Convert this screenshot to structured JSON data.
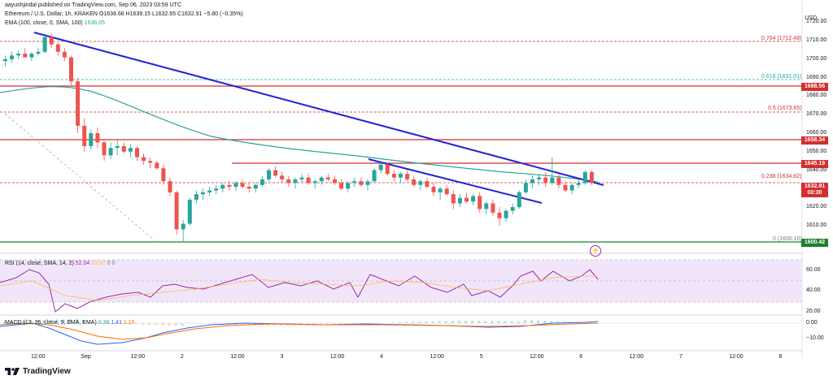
{
  "header": {
    "author_line": "aayushjindal published on TradingView.com, Sep 06, 2023 03:59 UTC",
    "symbol_line": "Ethereum / U.S. Dollar, 1h, KRAKEN",
    "ohlc": "O1638.68 H1639.15 L1632.65 C1632.91 −5.80 (−0.35%)",
    "ema_line": "EMA (100, close, 0, SMA, 100)",
    "ema_value": "1636.05"
  },
  "currency": "USD",
  "price_axis": {
    "ticks": [
      "1720.00",
      "1710.00",
      "1700.00",
      "1690.00",
      "1680.00",
      "1670.00",
      "1660.00",
      "1650.00",
      "1640.00",
      "1630.00",
      "1620.00",
      "1610.00",
      "1600.00"
    ]
  },
  "price_tags": [
    {
      "label": "1688.56",
      "color": "#d32f2f"
    },
    {
      "label": "1658.34",
      "color": "#d32f2f"
    },
    {
      "label": "1645.19",
      "color": "#d32f2f"
    },
    {
      "label": "1632.91",
      "color": "#d32f2f"
    },
    {
      "label": "00:30",
      "color": "#d32f2f"
    },
    {
      "label": "1600.42",
      "color": "#1b7f2e"
    }
  ],
  "fib_levels": [
    {
      "label": "0.764 (1712.48)",
      "color": "#d32f2f"
    },
    {
      "label": "0.618 (1691.01)",
      "color": "#26a69a"
    },
    {
      "label": "0.5 (1673.65)",
      "color": "#d32f2f"
    },
    {
      "label": "0.236 (1634.82)",
      "color": "#d32f2f"
    },
    {
      "label": "0 (1600.10)",
      "color": "#787b86"
    }
  ],
  "rsi": {
    "label": "RSI (14, close, SMA, 14, 2)",
    "value1": "52.04",
    "value2": "53.97",
    "value3": "0",
    "value4": "0",
    "ticks": [
      "60.00",
      "40.00",
      "20.00"
    ]
  },
  "macd": {
    "label": "MACD (12, 26, close, 9, EMA, EMA)",
    "value1": "0.38",
    "value2": "1.41",
    "value3": "1.10",
    "ticks": [
      "0.00",
      "−10.00"
    ]
  },
  "time_axis": [
    "12:00",
    "Sep",
    "12:00",
    "2",
    "12:00",
    "3",
    "12:00",
    "4",
    "12:00",
    "5",
    "12:00",
    "6",
    "12:00",
    "7",
    "12:00",
    "8"
  ],
  "branding": "TradingView",
  "colors": {
    "up": "#26a69a",
    "down": "#ef5350",
    "trendline": "#2323d6",
    "ema": "#26a69a",
    "rsi_line": "#9c27b0",
    "rsi_band": "#e9d9f5",
    "macd_line": "#2962ff",
    "signal_line": "#ff6d00",
    "resistance": "#d32f2f",
    "support": "#1b7f2e"
  },
  "chart_data": {
    "type": "candlestick",
    "symbol": "Ethereum / U.S. Dollar",
    "ylim": [
      1595,
      1725
    ],
    "candles": [
      [
        1699,
        1702,
        1696,
        1700
      ],
      [
        1700,
        1704,
        1698,
        1702
      ],
      [
        1702,
        1705,
        1700,
        1703
      ],
      [
        1703,
        1706,
        1701,
        1701
      ],
      [
        1701,
        1704,
        1699,
        1703
      ],
      [
        1703,
        1706,
        1702,
        1704
      ],
      [
        1704,
        1713,
        1703,
        1712
      ],
      [
        1712,
        1714,
        1706,
        1708
      ],
      [
        1708,
        1709,
        1702,
        1704
      ],
      [
        1704,
        1706,
        1699,
        1701
      ],
      [
        1701,
        1702,
        1686,
        1688
      ],
      [
        1688,
        1690,
        1660,
        1664
      ],
      [
        1664,
        1668,
        1650,
        1653
      ],
      [
        1653,
        1662,
        1651,
        1660
      ],
      [
        1660,
        1663,
        1652,
        1655
      ],
      [
        1655,
        1657,
        1645,
        1648
      ],
      [
        1648,
        1655,
        1646,
        1652
      ],
      [
        1652,
        1656,
        1648,
        1653
      ],
      [
        1653,
        1655,
        1649,
        1650
      ],
      [
        1650,
        1654,
        1647,
        1652
      ],
      [
        1652,
        1653,
        1645,
        1647
      ],
      [
        1647,
        1649,
        1643,
        1645
      ],
      [
        1645,
        1647,
        1641,
        1644
      ],
      [
        1644,
        1645,
        1640,
        1641
      ],
      [
        1641,
        1643,
        1632,
        1634
      ],
      [
        1634,
        1636,
        1626,
        1628
      ],
      [
        1628,
        1629,
        1605,
        1608
      ],
      [
        1608,
        1613,
        1601,
        1611
      ],
      [
        1611,
        1625,
        1610,
        1624
      ],
      [
        1624,
        1629,
        1622,
        1627
      ],
      [
        1627,
        1630,
        1624,
        1628
      ],
      [
        1628,
        1631,
        1626,
        1629
      ],
      [
        1629,
        1632,
        1627,
        1630
      ],
      [
        1630,
        1633,
        1628,
        1632
      ],
      [
        1632,
        1634,
        1629,
        1631
      ],
      [
        1631,
        1634,
        1629,
        1633
      ],
      [
        1633,
        1635,
        1630,
        1631
      ],
      [
        1631,
        1633,
        1628,
        1630
      ],
      [
        1630,
        1633,
        1628,
        1632
      ],
      [
        1632,
        1637,
        1631,
        1635
      ],
      [
        1635,
        1641,
        1634,
        1640
      ],
      [
        1640,
        1642,
        1636,
        1637
      ],
      [
        1637,
        1639,
        1633,
        1635
      ],
      [
        1635,
        1637,
        1631,
        1633
      ],
      [
        1633,
        1636,
        1630,
        1635
      ],
      [
        1635,
        1638,
        1633,
        1636
      ],
      [
        1636,
        1638,
        1632,
        1633
      ],
      [
        1633,
        1635,
        1630,
        1634
      ],
      [
        1634,
        1637,
        1632,
        1636
      ],
      [
        1636,
        1638,
        1634,
        1635
      ],
      [
        1635,
        1637,
        1632,
        1633
      ],
      [
        1633,
        1635,
        1629,
        1630
      ],
      [
        1630,
        1634,
        1628,
        1633
      ],
      [
        1633,
        1636,
        1631,
        1634
      ],
      [
        1634,
        1636,
        1631,
        1632
      ],
      [
        1632,
        1635,
        1629,
        1634
      ],
      [
        1634,
        1641,
        1633,
        1640
      ],
      [
        1640,
        1645,
        1638,
        1643
      ],
      [
        1643,
        1644,
        1637,
        1638
      ],
      [
        1638,
        1640,
        1634,
        1636
      ],
      [
        1636,
        1639,
        1633,
        1638
      ],
      [
        1638,
        1640,
        1634,
        1635
      ],
      [
        1635,
        1637,
        1631,
        1632
      ],
      [
        1632,
        1635,
        1629,
        1634
      ],
      [
        1634,
        1636,
        1630,
        1631
      ],
      [
        1631,
        1633,
        1626,
        1628
      ],
      [
        1628,
        1631,
        1624,
        1630
      ],
      [
        1630,
        1632,
        1626,
        1627
      ],
      [
        1627,
        1629,
        1619,
        1622
      ],
      [
        1622,
        1627,
        1620,
        1625
      ],
      [
        1625,
        1628,
        1622,
        1623
      ],
      [
        1623,
        1627,
        1621,
        1626
      ],
      [
        1626,
        1628,
        1617,
        1619
      ],
      [
        1619,
        1623,
        1616,
        1622
      ],
      [
        1622,
        1624,
        1615,
        1617
      ],
      [
        1617,
        1620,
        1610,
        1614
      ],
      [
        1614,
        1619,
        1612,
        1618
      ],
      [
        1618,
        1622,
        1616,
        1620
      ],
      [
        1620,
        1629,
        1619,
        1628
      ],
      [
        1628,
        1635,
        1627,
        1633
      ],
      [
        1633,
        1637,
        1630,
        1635
      ],
      [
        1635,
        1638,
        1632,
        1636
      ],
      [
        1636,
        1639,
        1631,
        1633
      ],
      [
        1633,
        1647,
        1632,
        1636
      ],
      [
        1636,
        1638,
        1630,
        1632
      ],
      [
        1632,
        1634,
        1628,
        1629
      ],
      [
        1629,
        1633,
        1627,
        1632
      ],
      [
        1632,
        1635,
        1630,
        1633
      ],
      [
        1633,
        1640,
        1632,
        1639
      ],
      [
        1639,
        1640,
        1632,
        1633
      ]
    ]
  }
}
